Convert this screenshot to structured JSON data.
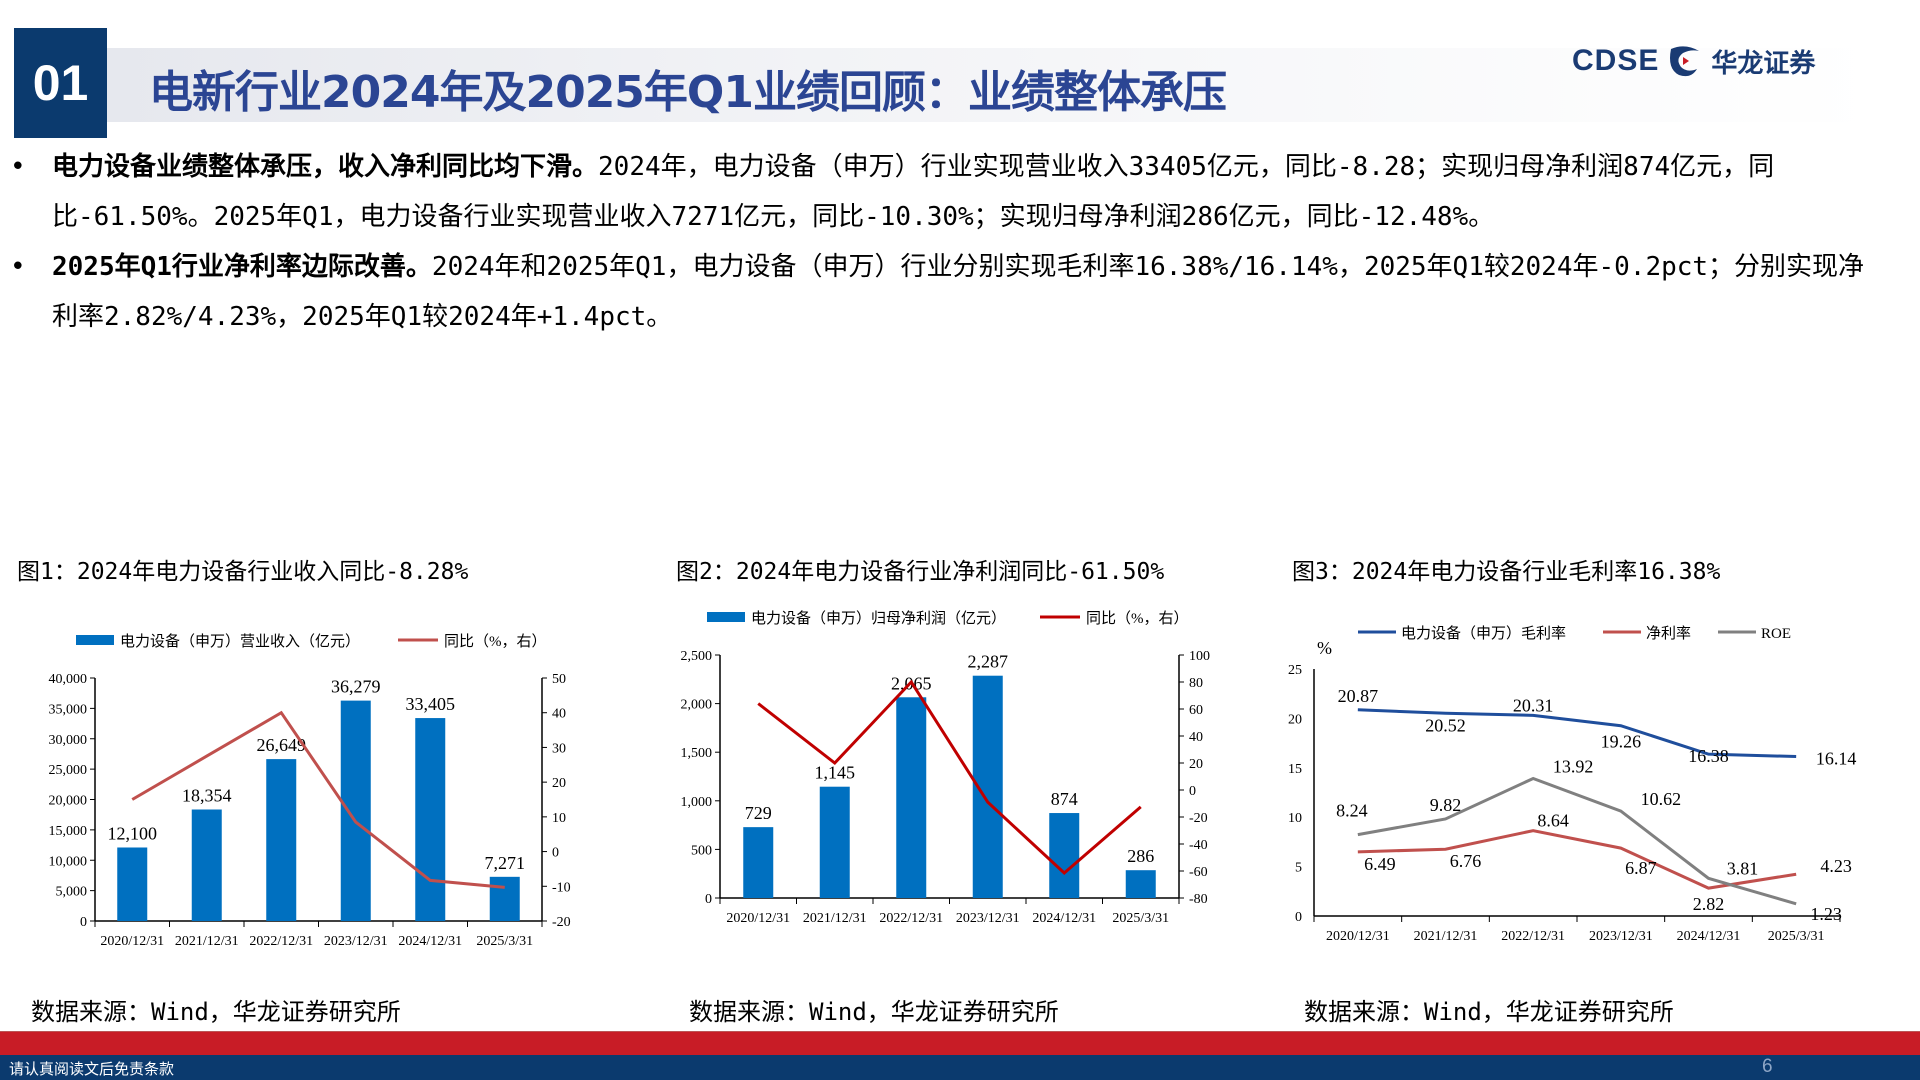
{
  "header": {
    "section_number": "01",
    "title": "电新行业2024年及2025年Q1业绩回顾：业绩整体承压",
    "logo_en": "CDSE",
    "logo_cn": "华龙证券"
  },
  "bullets": [
    {
      "marker": "•",
      "bold": "电力设备业绩整体承压，收入净利同比均下滑。",
      "text": "2024年，电力设备（申万）行业实现营业收入33405亿元，同比-8.28；实现归母净利润874亿元，同比-61.50%。2025年Q1，电力设备行业实现营业收入7271亿元，同比-10.30%；实现归母净利润286亿元，同比-12.48%。"
    },
    {
      "marker": "•",
      "bold": "2025年Q1行业净利率边际改善。",
      "text": "2024年和2025年Q1，电力设备（申万）行业分别实现毛利率16.38%/16.14%，2025年Q1较2024年-0.2pct；分别实现净利率2.82%/4.23%，2025年Q1较2024年+1.4pct。"
    }
  ],
  "colors": {
    "bar": "#0070c0",
    "line1": "#c0504d",
    "line2": "#c00000",
    "gross": "#1f4e9c",
    "net": "#c0504d",
    "roe": "#808080",
    "navy": "#0b3a6e",
    "red": "#c81c26"
  },
  "chart_data": [
    {
      "type": "bar",
      "title": "图1：2024年电力设备行业收入同比-8.28%",
      "source": "数据来源：Wind，华龙证券研究所",
      "categories": [
        "2020/12/31",
        "2021/12/31",
        "2022/12/31",
        "2023/12/31",
        "2024/12/31",
        "2025/3/31"
      ],
      "series": [
        {
          "name": "电力设备（申万）营业收入（亿元）",
          "type": "bar",
          "axis": "left",
          "values": [
            12100,
            18354,
            26649,
            36279,
            33405,
            7271
          ],
          "labels": [
            "12,100",
            "18,354",
            "26,649",
            "36,279",
            "33,405",
            "7,271"
          ]
        },
        {
          "name": "同比（%，右）",
          "type": "line",
          "axis": "right",
          "values": [
            15,
            27.5,
            40,
            8.5,
            -8.3,
            -10.3
          ]
        }
      ],
      "ylim_left": [
        0,
        40000
      ],
      "yticks_left": [
        "0",
        "5,000",
        "10,000",
        "15,000",
        "20,000",
        "25,000",
        "30,000",
        "35,000",
        "40,000"
      ],
      "ylim_right": [
        -20,
        50
      ],
      "yticks_right": [
        "-20",
        "-10",
        "0",
        "10",
        "20",
        "30",
        "40",
        "50"
      ]
    },
    {
      "type": "bar",
      "title": "图2：2024年电力设备行业净利润同比-61.50%",
      "source": "数据来源：Wind，华龙证券研究所",
      "categories": [
        "2020/12/31",
        "2021/12/31",
        "2022/12/31",
        "2023/12/31",
        "2024/12/31",
        "2025/3/31"
      ],
      "series": [
        {
          "name": "电力设备（申万）归母净利润（亿元）",
          "type": "bar",
          "axis": "left",
          "values": [
            729,
            1145,
            2065,
            2287,
            874,
            286
          ],
          "labels": [
            "729",
            "1,145",
            "2,065",
            "2,287",
            "874",
            "286"
          ]
        },
        {
          "name": "同比（%，右）",
          "type": "line",
          "axis": "right",
          "values": [
            64,
            20,
            80,
            -9,
            -61.5,
            -12.5
          ]
        }
      ],
      "ylim_left": [
        0,
        2500
      ],
      "yticks_left": [
        "0",
        "500",
        "1,000",
        "1,500",
        "2,000",
        "2,500"
      ],
      "ylim_right": [
        -80,
        100
      ],
      "yticks_right": [
        "-80",
        "-60",
        "-40",
        "-20",
        "0",
        "20",
        "40",
        "60",
        "80",
        "100"
      ]
    },
    {
      "type": "line",
      "title": "图3：2024年电力设备行业毛利率16.38%",
      "source": "数据来源：Wind，华龙证券研究所",
      "ylabel": "%",
      "categories": [
        "2020/12/31",
        "2021/12/31",
        "2022/12/31",
        "2023/12/31",
        "2024/12/31",
        "2025/3/31"
      ],
      "series": [
        {
          "name": "电力设备（申万）毛利率",
          "values": [
            20.87,
            20.52,
            20.31,
            19.26,
            16.38,
            16.14
          ],
          "labels": [
            "20.87",
            "20.52",
            "20.31",
            "19.26",
            "16.38",
            "16.14"
          ]
        },
        {
          "name": "净利率",
          "values": [
            6.49,
            6.76,
            8.64,
            6.87,
            2.82,
            4.23
          ],
          "labels": [
            "6.49",
            "6.76",
            "8.64",
            "6.87",
            "2.82",
            "4.23"
          ]
        },
        {
          "name": "ROE",
          "values": [
            8.24,
            9.82,
            13.92,
            10.62,
            3.81,
            1.23
          ],
          "labels": [
            "8.24",
            "9.82",
            "13.92",
            "10.62",
            "3.81",
            "1.23"
          ]
        }
      ],
      "ylim": [
        0,
        25
      ],
      "yticks": [
        "0",
        "5",
        "10",
        "15",
        "20",
        "25"
      ]
    }
  ],
  "footer": {
    "disclaimer": "请认真阅读文后免责条款",
    "page": "6"
  }
}
